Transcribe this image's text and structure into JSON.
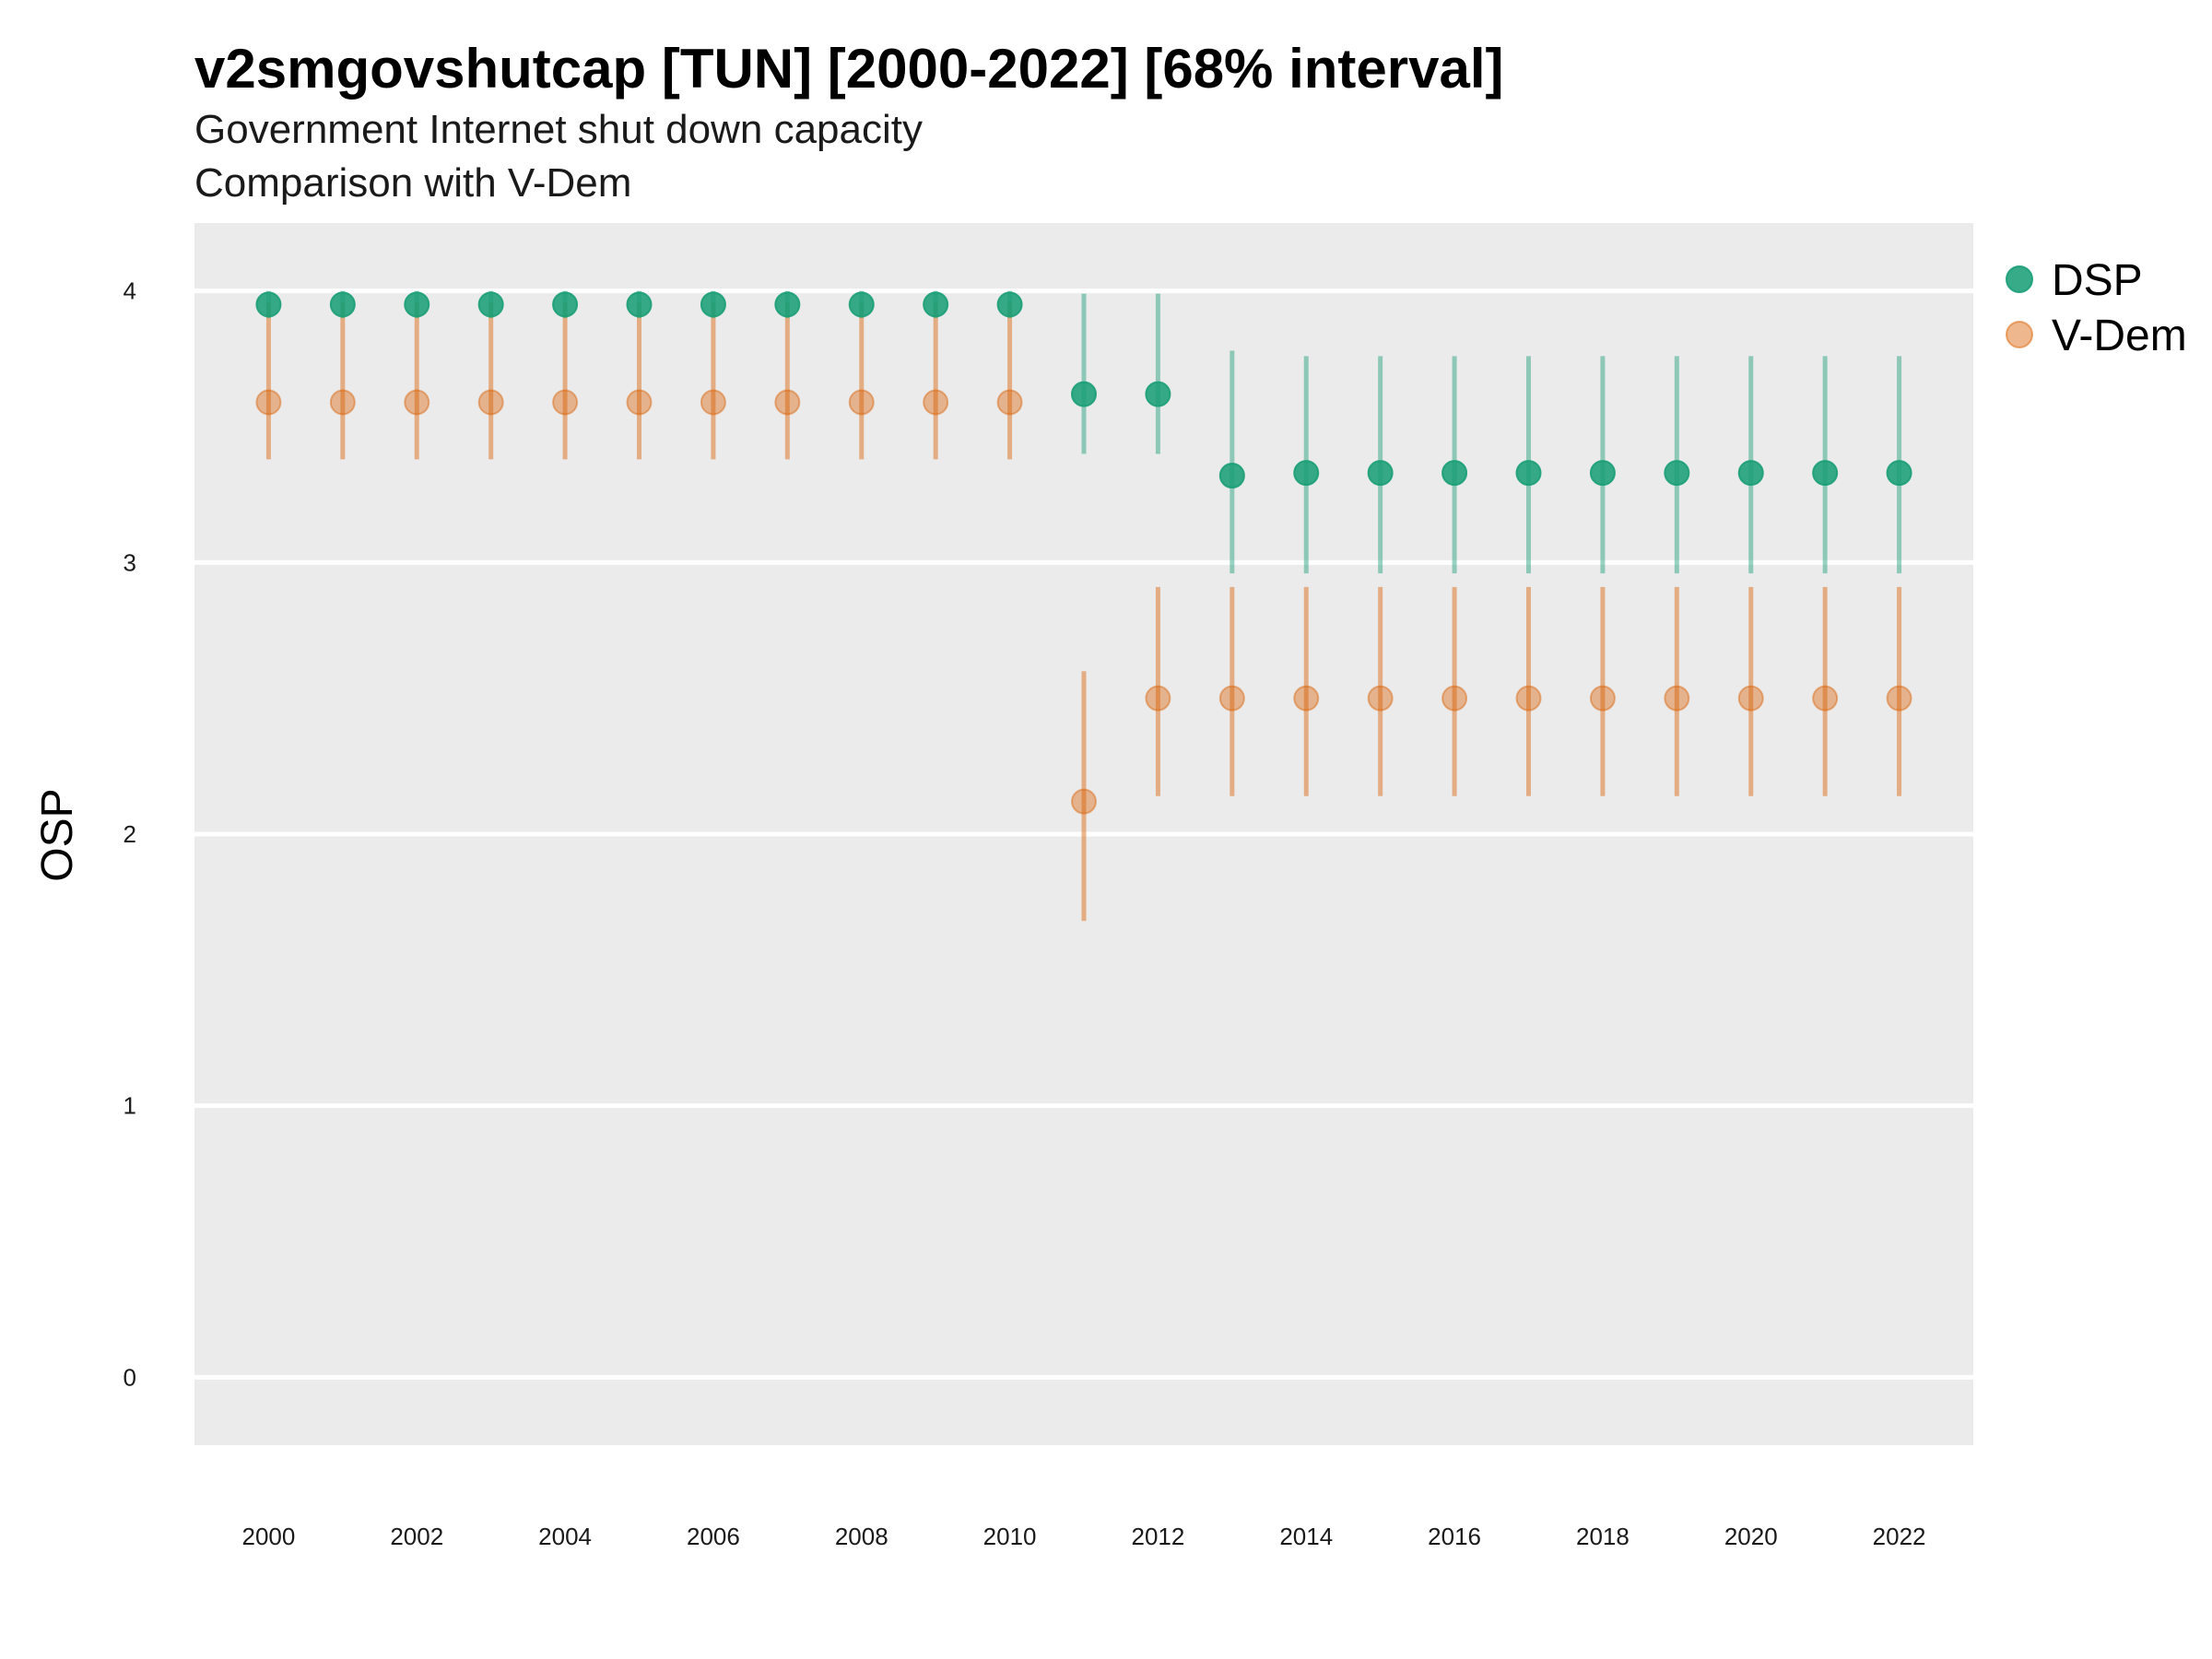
{
  "chart_data": {
    "type": "scatter",
    "title": "v2smgovshutcap [TUN] [2000-2022] [68% interval]",
    "subtitle": "Government Internet shut down capacity",
    "subtitle2": "Comparison with V-Dem",
    "xlabel": "",
    "ylabel": "OSP",
    "xlim": [
      1999,
      2023
    ],
    "ylim": [
      -0.25,
      4.25
    ],
    "x_ticks": [
      "2000",
      "2002",
      "2004",
      "2006",
      "2008",
      "2010",
      "2012",
      "2014",
      "2016",
      "2018",
      "2020",
      "2022"
    ],
    "y_ticks": [
      "0",
      "1",
      "2",
      "3",
      "4"
    ],
    "grid": true,
    "legend_position": "right",
    "x": [
      2000,
      2001,
      2002,
      2003,
      2004,
      2005,
      2006,
      2007,
      2008,
      2009,
      2010,
      2011,
      2012,
      2013,
      2014,
      2015,
      2016,
      2017,
      2018,
      2019,
      2020,
      2021,
      2022
    ],
    "series": [
      {
        "name": "DSP",
        "color": "#1b9e77",
        "values": [
          3.95,
          3.95,
          3.95,
          3.95,
          3.95,
          3.95,
          3.95,
          3.95,
          3.95,
          3.95,
          3.95,
          3.62,
          3.62,
          3.32,
          3.33,
          3.33,
          3.33,
          3.33,
          3.33,
          3.33,
          3.33,
          3.33,
          3.33
        ],
        "lower": [
          3.9,
          3.9,
          3.9,
          3.9,
          3.9,
          3.9,
          3.9,
          3.9,
          3.9,
          3.9,
          3.9,
          3.4,
          3.4,
          2.96,
          2.96,
          2.96,
          2.96,
          2.96,
          2.96,
          2.96,
          2.96,
          2.96,
          2.96
        ],
        "upper": [
          4.0,
          4.0,
          4.0,
          4.0,
          4.0,
          4.0,
          4.0,
          4.0,
          4.0,
          4.0,
          4.0,
          3.99,
          3.99,
          3.78,
          3.76,
          3.76,
          3.76,
          3.76,
          3.76,
          3.76,
          3.76,
          3.76,
          3.76
        ]
      },
      {
        "name": "V-Dem",
        "color": "#d95f02",
        "values": [
          3.59,
          3.59,
          3.59,
          3.59,
          3.59,
          3.59,
          3.59,
          3.59,
          3.59,
          3.59,
          3.59,
          2.12,
          2.5,
          2.5,
          2.5,
          2.5,
          2.5,
          2.5,
          2.5,
          2.5,
          2.5,
          2.5,
          2.5
        ],
        "lower": [
          3.38,
          3.38,
          3.38,
          3.38,
          3.38,
          3.38,
          3.38,
          3.38,
          3.38,
          3.38,
          3.38,
          1.68,
          2.14,
          2.14,
          2.14,
          2.14,
          2.14,
          2.14,
          2.14,
          2.14,
          2.14,
          2.14,
          2.14
        ],
        "upper": [
          3.96,
          3.96,
          3.96,
          3.96,
          3.96,
          3.96,
          3.96,
          3.96,
          3.96,
          3.96,
          3.96,
          2.6,
          2.91,
          2.91,
          2.91,
          2.91,
          2.91,
          2.91,
          2.91,
          2.91,
          2.91,
          2.91,
          2.91
        ]
      }
    ],
    "colors": {
      "panel_bg": "#ebebeb",
      "grid": "#ffffff"
    }
  }
}
